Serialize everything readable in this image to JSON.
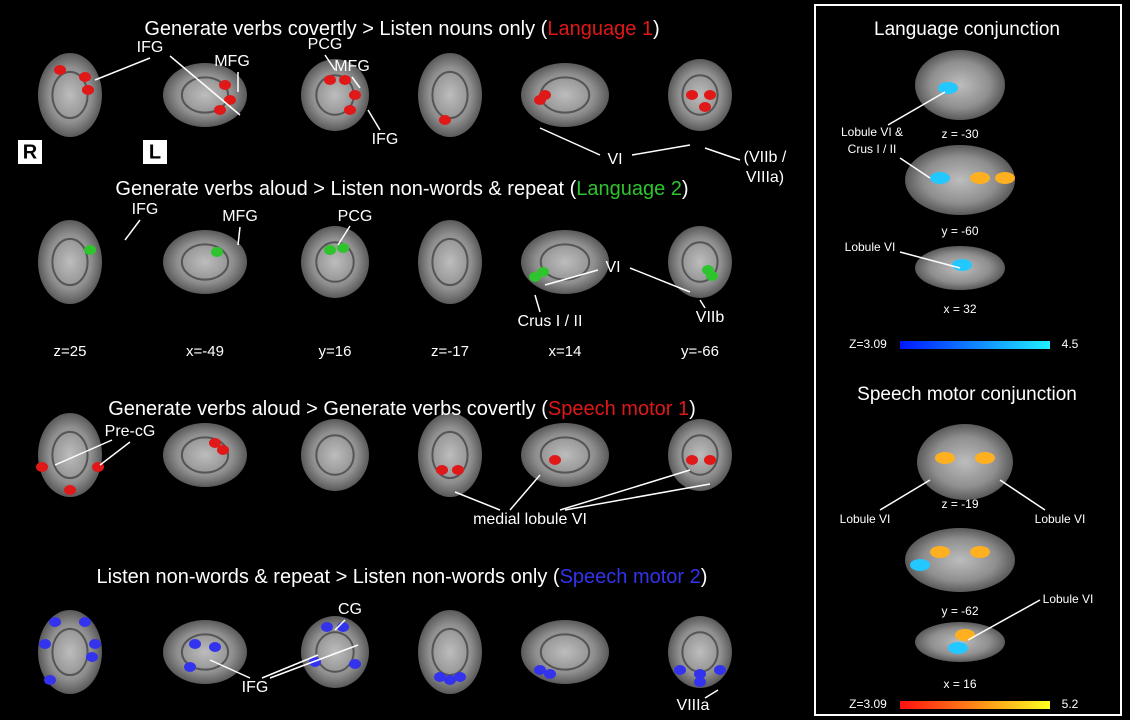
{
  "panels": [
    {
      "title": "Generate verbs covertly > Listen nouns only (",
      "tag": "Language 1",
      "close": ")",
      "color": "#e01818",
      "labels": [
        "IFG",
        "MFG",
        "PCG",
        "MFG",
        "IFG",
        "VI",
        "(VIIb /",
        "VIIIa)"
      ]
    },
    {
      "title": "Generate verbs aloud > Listen non-words & repeat (",
      "tag": "Language 2",
      "close": ")",
      "color": "#2ec42e",
      "labels": [
        "IFG",
        "MFG",
        "PCG",
        "VI",
        "Crus I / II",
        "VIIb"
      ]
    },
    {
      "title": "Generate verbs aloud > Generate verbs covertly (",
      "tag": "Speech motor 1",
      "close": ")",
      "color": "#e01818",
      "labels": [
        "Pre-cG",
        "medial lobule VI"
      ]
    },
    {
      "title": "Listen non-words & repeat > Listen non-words only (",
      "tag": "Speech motor 2",
      "close": ")",
      "color": "#3333ee",
      "labels": [
        "CG",
        "IFG",
        "VIIIa"
      ]
    }
  ],
  "orientation": {
    "right": "R",
    "left": "L"
  },
  "slice_labels": [
    "z=25",
    "x=-49",
    "y=16",
    "z=-17",
    "x=14",
    "y=-66"
  ],
  "conjunction": [
    {
      "title": "Language conjunction",
      "slices": [
        "z = -30",
        "y = -60",
        "x = 32"
      ],
      "labels": [
        "Lobule VI &",
        "Crus I / II",
        "Lobule VI"
      ],
      "colorbar": {
        "min": "Z=3.09",
        "max": "4.5"
      }
    },
    {
      "title": "Speech motor conjunction",
      "slices": [
        "z = -19",
        "y = -62",
        "x = 16"
      ],
      "labels": [
        "Lobule VI",
        "Lobule VI",
        "Lobule VI"
      ],
      "colorbar": {
        "min": "Z=3.09",
        "max": "5.2"
      }
    }
  ]
}
